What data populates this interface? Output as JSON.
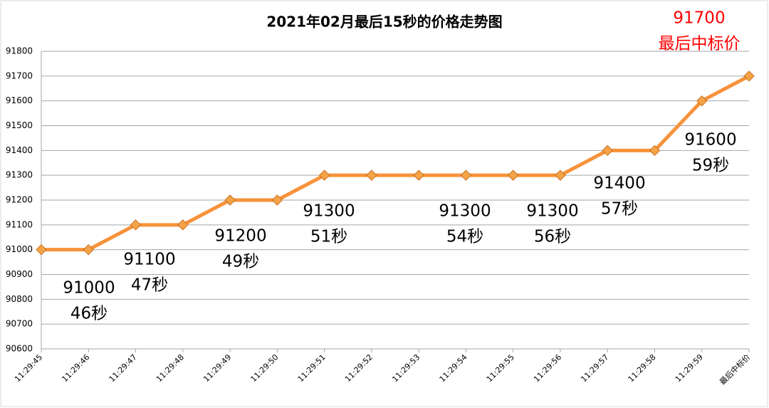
{
  "chart_data": {
    "type": "line",
    "title": "2021年02月最后15秒的价格走势图",
    "categories": [
      "11:29:45",
      "11:29:46",
      "11:29:47",
      "11:29:48",
      "11:29:49",
      "11:29:50",
      "11:29:51",
      "11:29:52",
      "11:29:53",
      "11:29:54",
      "11:29:55",
      "11:29:56",
      "11:29:57",
      "11:29:58",
      "11:29:59",
      "最后中标价"
    ],
    "values": [
      91000,
      91000,
      91100,
      91100,
      91200,
      91200,
      91300,
      91300,
      91300,
      91300,
      91300,
      91300,
      91400,
      91400,
      91600,
      91700
    ],
    "color": "#f7923a",
    "marker_color": "#f4a347",
    "ylim": [
      90600,
      91800
    ],
    "yticks": [
      90600,
      90700,
      90800,
      90900,
      91000,
      91100,
      91200,
      91300,
      91400,
      91500,
      91600,
      91700,
      91800
    ],
    "grid": true,
    "annotations": [
      [
        "91000",
        "46秒"
      ],
      [
        "91100",
        "47秒"
      ],
      [
        "91200",
        "49秒"
      ],
      [
        "91300",
        "51秒"
      ],
      [
        "91300",
        "54秒"
      ],
      [
        "91300",
        "56秒"
      ],
      [
        "91400",
        "57秒"
      ],
      [
        "91600",
        "59秒"
      ]
    ],
    "final_label": {
      "text": [
        "91700",
        "最后中标价"
      ],
      "color": "#ff0000"
    }
  }
}
